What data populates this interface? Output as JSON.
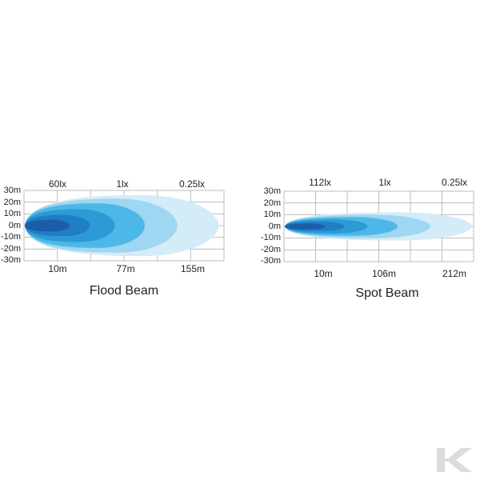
{
  "chart_data": [
    {
      "type": "beam-pattern",
      "title": "Flood Beam",
      "lux_labels": [
        "60lx",
        "1lx",
        "0.25lx"
      ],
      "distance_labels": [
        "10m",
        "77m",
        "155m"
      ],
      "y_ticks": [
        "30m",
        "20m",
        "10m",
        "0m",
        "-10m",
        "-20m",
        "-30m"
      ],
      "ylim": [
        -30,
        30
      ],
      "grid": true,
      "zones": [
        {
          "reach": 155,
          "half_width": 26,
          "color": "#d3ecf8"
        },
        {
          "reach": 122,
          "half_width": 23,
          "color": "#9fd6f1"
        },
        {
          "reach": 96,
          "half_width": 19,
          "color": "#4db8e7"
        },
        {
          "reach": 72,
          "half_width": 14,
          "color": "#2b9ad5"
        },
        {
          "reach": 52,
          "half_width": 9,
          "color": "#1f7ec4"
        },
        {
          "reach": 36,
          "half_width": 5,
          "color": "#1a5ea8"
        }
      ]
    },
    {
      "type": "beam-pattern",
      "title": "Spot Beam",
      "lux_labels": [
        "112lx",
        "1lx",
        "0.25lx"
      ],
      "distance_labels": [
        "10m",
        "106m",
        "212m"
      ],
      "y_ticks": [
        "30m",
        "20m",
        "10m",
        "0m",
        "-10m",
        "-20m",
        "-30m"
      ],
      "ylim": [
        -30,
        30
      ],
      "grid": true,
      "zones": [
        {
          "reach": 212,
          "half_width": 12,
          "color": "#d3ecf8"
        },
        {
          "reach": 165,
          "half_width": 10,
          "color": "#9fd6f1"
        },
        {
          "reach": 128,
          "half_width": 8,
          "color": "#4db8e7"
        },
        {
          "reach": 94,
          "half_width": 6,
          "color": "#2b9ad5"
        },
        {
          "reach": 68,
          "half_width": 4,
          "color": "#1f7ec4"
        },
        {
          "reach": 46,
          "half_width": 2.5,
          "color": "#1a5ea8"
        }
      ]
    }
  ],
  "logo": {
    "icon": "k-logo-icon"
  }
}
